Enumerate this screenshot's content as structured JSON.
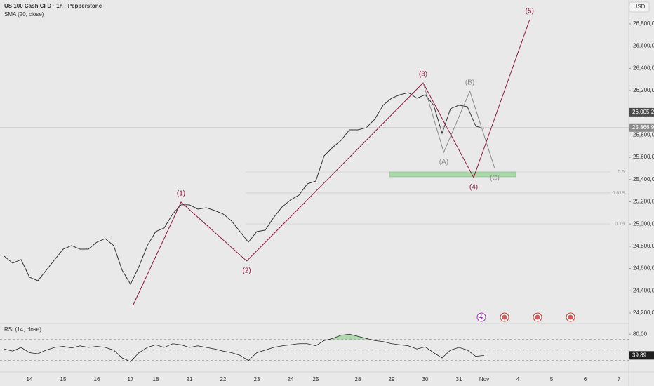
{
  "header": {
    "title": "US 100 Cash CFD · 1h · Pepperstone",
    "indicator": "SMA (20, close)",
    "currency": "USD"
  },
  "chart_data": [
    {
      "type": "line",
      "color": "#333333",
      "categories": [
        null,
        null,
        null,
        "14",
        null,
        null,
        null,
        "15",
        null,
        null,
        null,
        "16",
        null,
        null,
        null,
        "17",
        null,
        null,
        "18",
        null,
        null,
        null,
        "21",
        null,
        null,
        null,
        "22",
        null,
        null,
        null,
        "23",
        null,
        null,
        null,
        "24",
        null,
        null,
        "25",
        null,
        null,
        null,
        null,
        "28",
        null,
        null,
        null,
        "29",
        null,
        null,
        null,
        "30",
        null,
        null,
        null,
        "31",
        null,
        null,
        "Nov",
        null,
        null,
        null,
        "4",
        null,
        null,
        null,
        "5",
        null,
        null,
        null,
        "6",
        null,
        null,
        null,
        "7"
      ],
      "values": [
        24711,
        24648,
        24680,
        24522,
        24490,
        24585,
        24680,
        24774,
        24806,
        24774,
        24774,
        24837,
        24869,
        24806,
        24585,
        24459,
        24617,
        24806,
        24932,
        24964,
        25090,
        25172,
        25172,
        25134,
        25146,
        25121,
        25090,
        25027,
        24932,
        24837,
        24932,
        24945,
        25058,
        25153,
        25216,
        25260,
        25361,
        25386,
        25614,
        25689,
        25752,
        25847,
        25847,
        25866,
        25942,
        26068,
        26131,
        26162,
        26181,
        26131,
        26162,
        26068,
        25815,
        26037,
        26068,
        26055,
        25879,
        25860,
        null,
        null,
        null,
        null,
        null,
        null,
        null,
        null,
        null,
        null,
        null,
        null,
        null,
        null,
        null,
        null
      ],
      "ylim": [
        24124,
        27014
      ],
      "yticks": [
        {
          "value": 24200,
          "label": "24,200,0"
        },
        {
          "value": 24400,
          "label": "24,400,0"
        },
        {
          "value": 24600,
          "label": "24,600,0"
        },
        {
          "value": 24800,
          "label": "24,800,0"
        },
        {
          "value": 25000,
          "label": "25,000,0"
        },
        {
          "value": 25200,
          "label": "25,200,0"
        },
        {
          "value": 25400,
          "label": "25,400,0"
        },
        {
          "value": 25600,
          "label": "25,600,0"
        },
        {
          "value": 25800,
          "label": "25,800,0"
        },
        {
          "value": 26000,
          "label": "26,000,0"
        },
        {
          "value": 26200,
          "label": "26,200,0"
        },
        {
          "value": 26400,
          "label": "26,400,0"
        },
        {
          "value": 26600,
          "label": "26,600,0"
        },
        {
          "value": 26800,
          "label": "26,800,0"
        }
      ],
      "price_labels": [
        {
          "value": 26005.2,
          "label": "26.005,2",
          "color": "#4a4a4a"
        },
        {
          "value": 25866.9,
          "label": "25.866,9",
          "color": "#8c8c8c"
        }
      ],
      "levels": [
        {
          "value": 25468,
          "label": "0.5"
        },
        {
          "value": 25279,
          "label": "0.618"
        },
        {
          "value": 25001,
          "label": "0.79"
        }
      ],
      "zone": {
        "from": 25424,
        "to": 25468,
        "x": [
          45.75,
          60.75
        ],
        "color": "#a9d8a9"
      },
      "waves": {
        "color": "#8b1a3a",
        "points": [
          {
            "label": null,
            "x": 15.3,
            "y": 24269
          },
          {
            "label": "(1)",
            "x": 21,
            "y": 25197
          },
          {
            "label": "(2)",
            "x": 28.8,
            "y": 24667
          },
          {
            "label": "(3)",
            "x": 49.75,
            "y": 26269
          },
          {
            "label": "(4)",
            "x": 55.75,
            "y": 25418
          },
          {
            "label": "(5)",
            "x": 62.4,
            "y": 26837
          }
        ]
      },
      "corrective": {
        "color": "#8a8a8a",
        "points": [
          {
            "label": null,
            "x": 49.75,
            "y": 26269
          },
          {
            "label": "(A)",
            "x": 52.2,
            "y": 25645
          },
          {
            "label": "(B)",
            "x": 55.3,
            "y": 26194
          },
          {
            "label": "(C)",
            "x": 58.25,
            "y": 25500
          }
        ]
      }
    },
    {
      "type": "line",
      "title": "RSI (14, close)",
      "color": "#222222",
      "values": [
        52,
        48,
        55,
        45,
        43,
        50,
        55,
        57,
        54,
        58,
        55,
        57,
        55,
        50,
        35,
        28,
        45,
        55,
        60,
        55,
        62,
        60,
        55,
        58,
        55,
        52,
        48,
        45,
        40,
        30,
        45,
        50,
        55,
        58,
        60,
        62,
        62,
        58,
        68,
        72,
        78,
        80,
        76,
        72,
        68,
        66,
        62,
        60,
        58,
        52,
        56,
        45,
        35,
        50,
        55,
        50,
        38,
        40
      ],
      "ylim": [
        19,
        95
      ],
      "yticks": [
        {
          "value": 80,
          "label": "80,00"
        }
      ],
      "bands": [
        70,
        50,
        30
      ],
      "price_labels": [
        {
          "value": 39.89,
          "label": "39,89",
          "color": "#1e1e1e"
        }
      ],
      "fill_above": 70,
      "fill_color": "#9fd49f"
    }
  ]
}
